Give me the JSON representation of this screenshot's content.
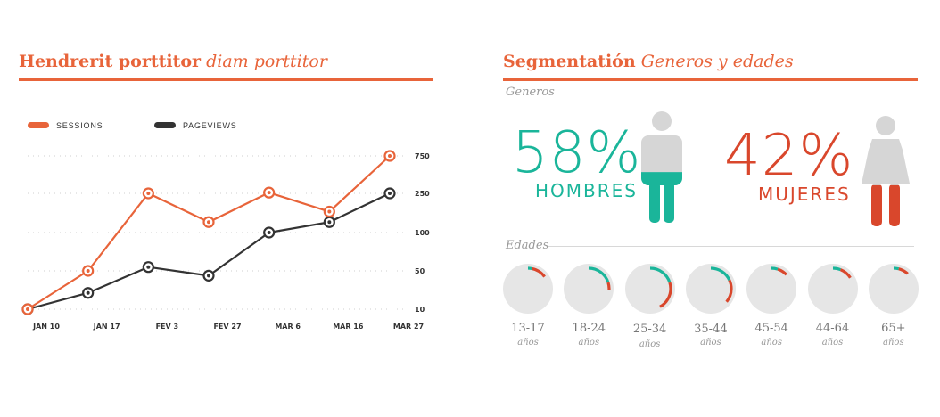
{
  "left_panel": {
    "title_bold": "Hendrerit porttitor",
    "title_italic": "diam porttitor"
  },
  "right_panel": {
    "title_bold": "Segmentatión",
    "title_italic": "Generos y edades",
    "generos_label": "Generos",
    "edades_label": "Edades"
  },
  "gender": {
    "male": {
      "percent": "58%",
      "label": "HOMBRES",
      "share": 0.58,
      "color": "#1ab59a"
    },
    "female": {
      "percent": "42%",
      "label": "MUJERES",
      "share": 0.42,
      "color": "#d9472c"
    }
  },
  "chart_data": [
    {
      "type": "line",
      "x": [
        "JAN 10",
        "JAN 17",
        "FEV 3",
        "FEV 27",
        "MAR 6",
        "MAR 16",
        "MAR 27"
      ],
      "y_ticks": [
        "750",
        "250",
        "100",
        "50",
        "10"
      ],
      "y_scale": "categorical ticks: 10, 50, 100, 250, 750",
      "series": [
        {
          "name": "SESSIONS",
          "color": "#e8643a",
          "values": [
            10,
            50,
            250,
            140,
            260,
            180,
            750
          ]
        },
        {
          "name": "PAGEVIEWS",
          "color": "#333333",
          "values": [
            10,
            27,
            55,
            45,
            100,
            140,
            250
          ]
        }
      ],
      "legend_position": "top-left",
      "grid": "horizontal dotted"
    },
    {
      "type": "pie",
      "variant": "donut-progress",
      "categories": [
        "13-17",
        "18-24",
        "25-34",
        "35-44",
        "45-54",
        "44-64",
        "65+"
      ],
      "unit": "años",
      "series": [
        {
          "name": "teal",
          "color": "#1ab59a",
          "values": [
            0.03,
            0.2,
            0.2,
            0.18,
            0.05,
            0.06,
            0.04
          ]
        },
        {
          "name": "red",
          "color": "#d9472c",
          "values": [
            0.12,
            0.06,
            0.22,
            0.18,
            0.08,
            0.1,
            0.08
          ]
        }
      ]
    }
  ]
}
